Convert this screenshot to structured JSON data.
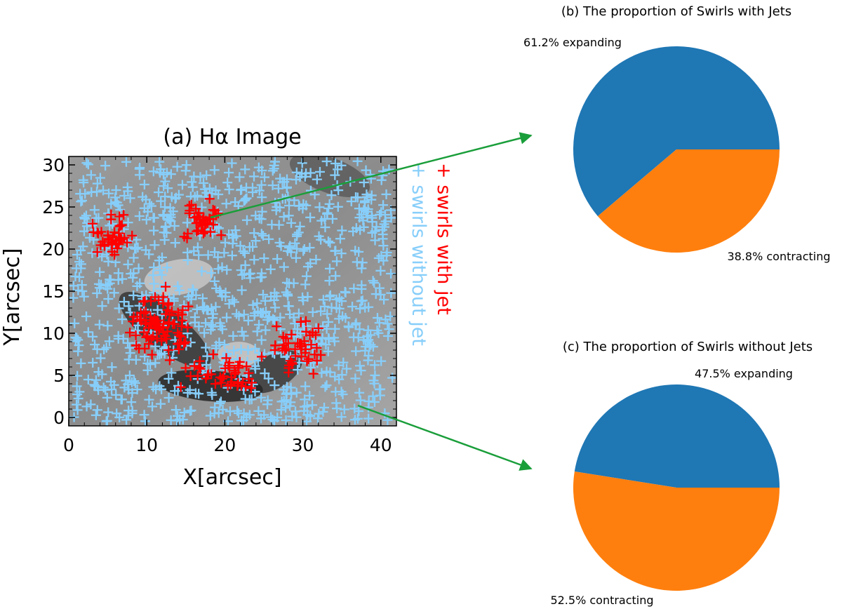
{
  "colors": {
    "swirl_with_jet": "#ff0000",
    "swirl_without_jet": "#87cefa",
    "expanding": "#1f77b4",
    "contracting": "#ff7f0e",
    "arrow": "#1a9e3a"
  },
  "chart_data": [
    {
      "type": "scatter",
      "title": "(a) Hα   Image",
      "xlabel": "X[arcsec]",
      "ylabel": "Y[arcsec]",
      "xlim": [
        0,
        42
      ],
      "ylim": [
        -1,
        31
      ],
      "xticks": [
        "0",
        "10",
        "20",
        "30",
        "40"
      ],
      "yticks": [
        "0",
        "5",
        "10",
        "15",
        "20",
        "25",
        "30"
      ],
      "legend": [
        "+ swirls with jet",
        "+ swirls without jet"
      ],
      "series": [
        {
          "name": "swirls with jet",
          "clusters": [
            {
              "cx": 5.5,
              "cy": 21.5,
              "sx": 2.0,
              "sy": 2.0,
              "n": 40
            },
            {
              "cx": 17.0,
              "cy": 23.0,
              "sx": 2.0,
              "sy": 2.0,
              "n": 38
            },
            {
              "cx": 11.5,
              "cy": 11.0,
              "sx": 3.2,
              "sy": 3.0,
              "n": 85
            },
            {
              "cx": 20.0,
              "cy": 5.0,
              "sx": 4.0,
              "sy": 1.8,
              "n": 45
            },
            {
              "cx": 29.5,
              "cy": 8.5,
              "sx": 3.0,
              "sy": 2.2,
              "n": 45
            }
          ]
        },
        {
          "name": "swirls without jet",
          "region": {
            "x": [
              0.5,
              41.5
            ],
            "y": [
              -0.5,
              30.5
            ]
          },
          "n": 950
        }
      ]
    },
    {
      "type": "pie",
      "title": "(b) The proportion of Swirls with Jets",
      "slices": [
        {
          "label": "61.2% expanding",
          "value": 61.2
        },
        {
          "label": "38.8% contracting",
          "value": 38.8
        }
      ]
    },
    {
      "type": "pie",
      "title": "(c) The proportion of Swirls without Jets",
      "slices": [
        {
          "label": "47.5% expanding",
          "value": 47.5
        },
        {
          "label": "52.5% contracting",
          "value": 52.5
        }
      ]
    }
  ]
}
